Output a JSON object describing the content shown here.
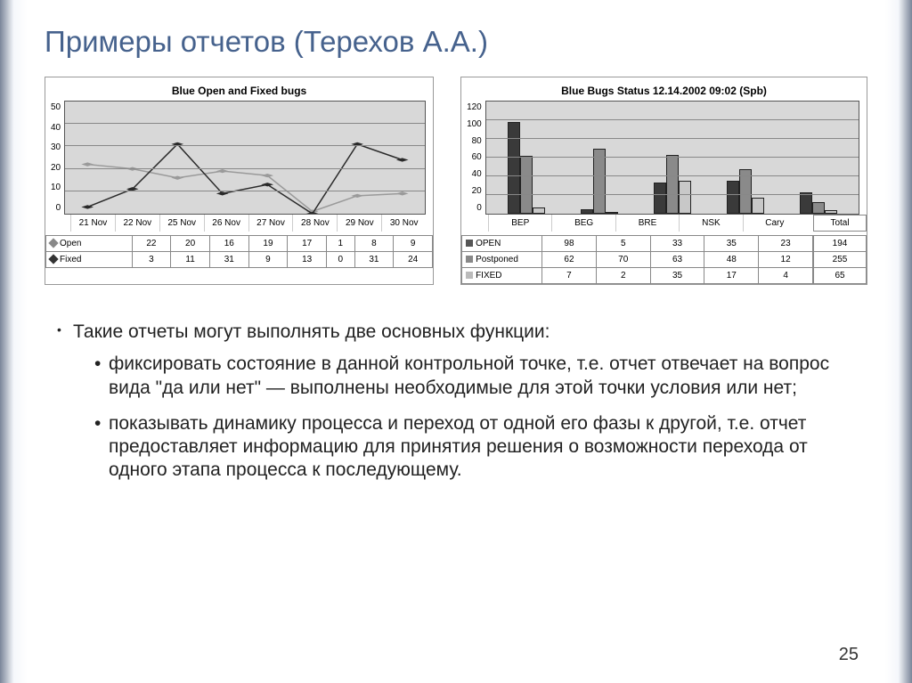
{
  "title": "Примеры отчетов (Терехов А.А.)",
  "pagenum": "25",
  "chart1": {
    "title": "Blue Open and Fixed bugs",
    "ylim": [
      0,
      50
    ],
    "ystep": 10,
    "x": [
      "21 Nov",
      "22 Nov",
      "25 Nov",
      "26 Nov",
      "27 Nov",
      "28 Nov",
      "29 Nov",
      "30 Nov"
    ],
    "series": [
      {
        "name": "Open",
        "marker": "dia-light",
        "color": "#9a9a9a",
        "values": [
          22,
          20,
          16,
          19,
          17,
          1,
          8,
          9
        ]
      },
      {
        "name": "Fixed",
        "marker": "dia-dark",
        "color": "#2a2a2a",
        "values": [
          3,
          11,
          31,
          9,
          13,
          0,
          31,
          24
        ]
      }
    ]
  },
  "chart2": {
    "title": "Blue Bugs Status  12.14.2002 09:02 (Spb)",
    "ylim": [
      0,
      120
    ],
    "ystep": 20,
    "x": [
      "BEP",
      "BEG",
      "BRE",
      "NSK",
      "Cary"
    ],
    "total_label": "Total",
    "series": [
      {
        "name": "OPEN",
        "color": "#3a3a3a",
        "values": [
          98,
          5,
          33,
          35,
          23
        ],
        "total": 194
      },
      {
        "name": "Postponed",
        "color": "#8a8a8a",
        "values": [
          62,
          70,
          63,
          48,
          12
        ],
        "total": 255
      },
      {
        "name": "FIXED",
        "color": "#c8c8c8",
        "values": [
          7,
          2,
          35,
          17,
          4
        ],
        "total": 65
      }
    ]
  },
  "bullets": {
    "intro": "Такие отчеты могут выполнять две основных функции:",
    "b1": "фиксировать состояние в данной контрольной точке, т.е. отчет отвечает на вопрос вида \"да или нет\" — выполнены необходимые для этой точки условия или нет;",
    "b2": "показывать динамику процесса и переход от одной его фазы к другой, т.е. отчет предоставляет информацию для принятия решения о возможности перехода от одного этапа процесса к последующему."
  }
}
